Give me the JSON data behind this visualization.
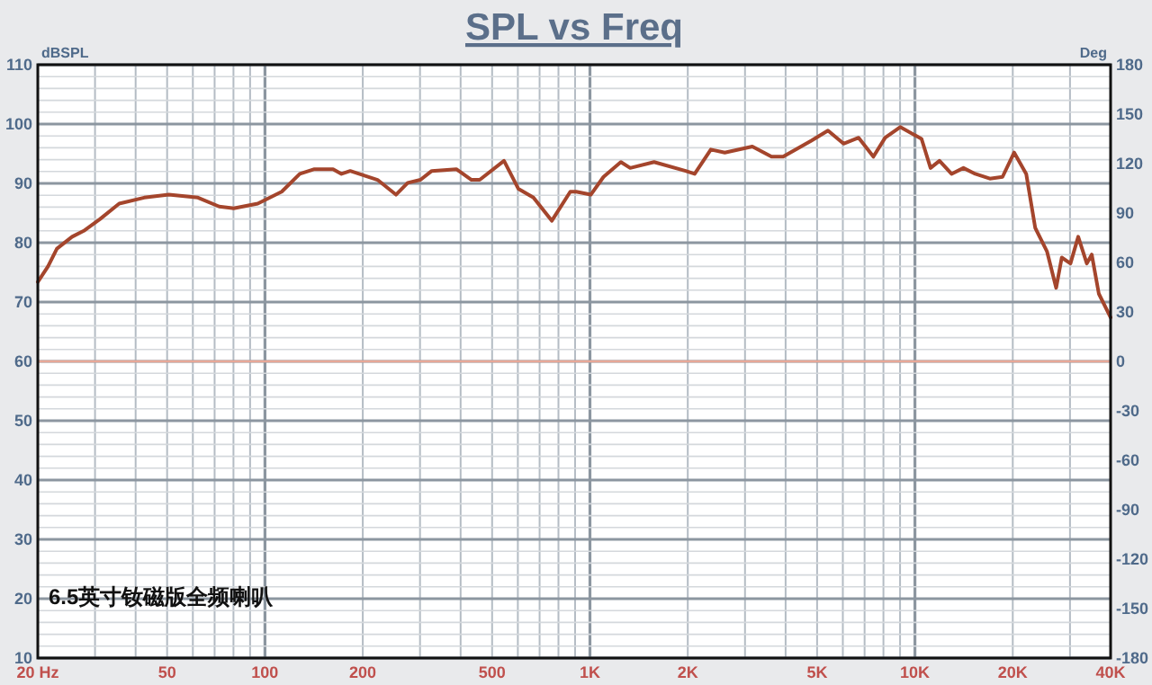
{
  "chart_data": {
    "type": "line",
    "title": "SPL vs Freq",
    "ylabel": "dBSPL",
    "y2label": "Deg",
    "log": "x",
    "grid": true,
    "xlim": [
      20,
      40000
    ],
    "ylim": [
      10,
      110
    ],
    "y2lim": [
      -180,
      180
    ],
    "xticks": [
      {
        "value": 20,
        "label": "20 Hz"
      },
      50,
      100,
      200,
      500,
      {
        "value": 1000,
        "label": "1K"
      },
      {
        "value": 2000,
        "label": "2K"
      },
      {
        "value": 5000,
        "label": "5K"
      },
      {
        "value": 10000,
        "label": "10K"
      },
      {
        "value": 20000,
        "label": "20K"
      },
      {
        "value": 40000,
        "label": "40K"
      }
    ],
    "yticks": [
      10,
      20,
      30,
      40,
      50,
      60,
      70,
      80,
      90,
      100,
      110
    ],
    "y2ticks": [
      -180,
      -150,
      -120,
      -90,
      -60,
      -30,
      0,
      30,
      60,
      90,
      120,
      150,
      180
    ],
    "ref_lines": [
      {
        "axis": "y",
        "value": 60,
        "color": "#e8a898"
      }
    ],
    "annotations": [
      "6.5英寸钕磁版全频喇叭"
    ],
    "x": [
      20,
      21.5,
      22.9,
      25.5,
      27.7,
      31.1,
      35.6,
      42.5,
      50.6,
      62.2,
      72.3,
      80.1,
      95,
      112.6,
      128,
      142,
      162,
      172,
      183,
      222,
      253,
      275,
      301,
      326,
      388,
      432,
      458,
      544,
      602,
      670,
      763,
      870,
      907,
      1006,
      1101,
      1245,
      1330,
      1575,
      1970,
      2100,
      2355,
      2600,
      3160,
      3620,
      3930,
      4800,
      5400,
      6030,
      6710,
      7450,
      8100,
      9010,
      10480,
      11170,
      11900,
      12960,
      14100,
      15340,
      17000,
      18600,
      20200,
      22000,
      23450,
      25500,
      27200,
      28300,
      30100,
      31800,
      33800,
      35000,
      36800,
      40000
    ],
    "series": [
      {
        "color": "#a4452c",
        "values": [
          73.4,
          76.0,
          79.0,
          81.0,
          82.0,
          84.0,
          86.6,
          87.6,
          88.1,
          87.6,
          86.1,
          85.8,
          86.6,
          88.6,
          91.6,
          92.4,
          92.4,
          91.6,
          92.1,
          90.6,
          88.1,
          90.1,
          90.6,
          92.1,
          92.4,
          90.6,
          90.6,
          93.8,
          89.1,
          87.6,
          83.7,
          88.6,
          88.6,
          88.1,
          91.1,
          93.6,
          92.6,
          93.6,
          92.1,
          91.6,
          95.7,
          95.2,
          96.2,
          94.5,
          94.5,
          97.2,
          98.9,
          96.7,
          97.7,
          94.5,
          97.7,
          99.5,
          97.5,
          92.6,
          93.8,
          91.6,
          92.6,
          91.6,
          90.8,
          91.1,
          95.2,
          91.6,
          82.5,
          78.5,
          72.4,
          77.5,
          76.5,
          81.0,
          76.5,
          78.0,
          71.4,
          67.4
        ]
      }
    ]
  }
}
